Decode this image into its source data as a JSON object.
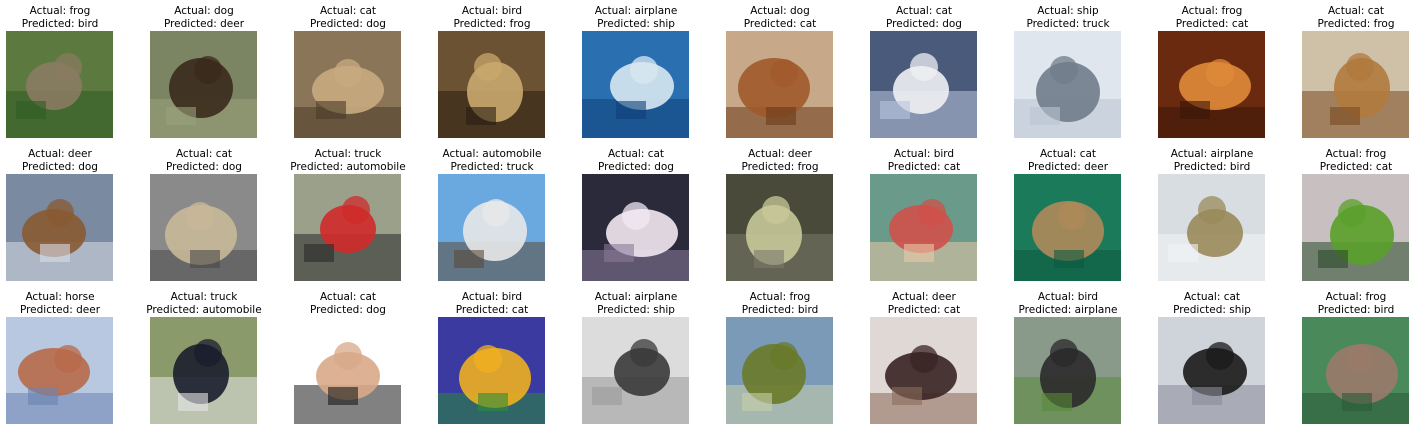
{
  "figure": {
    "description_rows": 3,
    "items": [
      {
        "actual": "Actual: frog",
        "predicted": "Predicted: bird",
        "icon": "frog-image",
        "bg": "#5c7a3f",
        "fg": "#8a7b62",
        "accent": "#2f5b24"
      },
      {
        "actual": "Actual: dog",
        "predicted": "Predicted: deer",
        "icon": "dog-image",
        "bg": "#7c8563",
        "fg": "#3a2a1c",
        "accent": "#9aa07c"
      },
      {
        "actual": "Actual: cat",
        "predicted": "Predicted: dog",
        "icon": "cat-image",
        "bg": "#8a7558",
        "fg": "#c8ab80",
        "accent": "#4a3a2a"
      },
      {
        "actual": "Actual: bird",
        "predicted": "Predicted: frog",
        "icon": "bird-image",
        "bg": "#6a5232",
        "fg": "#c9a86e",
        "accent": "#2a1e12"
      },
      {
        "actual": "Actual: airplane",
        "predicted": "Predicted: ship",
        "icon": "airplane-image",
        "bg": "#2a6fb0",
        "fg": "#d8e8f2",
        "accent": "#0f3f7a"
      },
      {
        "actual": "Actual: dog",
        "predicted": "Predicted: cat",
        "icon": "dog-image",
        "bg": "#c7a98a",
        "fg": "#a05a2a",
        "accent": "#6a3a1a"
      },
      {
        "actual": "Actual: cat",
        "predicted": "Predicted: dog",
        "icon": "cat-image",
        "bg": "#4a5a7a",
        "fg": "#f0f0f4",
        "accent": "#b8c4dc"
      },
      {
        "actual": "Actual: ship",
        "predicted": "Predicted: truck",
        "icon": "ship-image",
        "bg": "#dfe6ee",
        "fg": "#707c8a",
        "accent": "#b9c5d2"
      },
      {
        "actual": "Actual: frog",
        "predicted": "Predicted: cat",
        "icon": "frog-image",
        "bg": "#6a2a10",
        "fg": "#e08a3a",
        "accent": "#3a1508"
      },
      {
        "actual": "Actual: cat",
        "predicted": "Predicted: frog",
        "icon": "cat-image",
        "bg": "#cfc0a8",
        "fg": "#b07a3e",
        "accent": "#7a4a22"
      },
      {
        "actual": "Actual: deer",
        "predicted": "Predicted: dog",
        "icon": "deer-image",
        "bg": "#7a8aa0",
        "fg": "#8a5a32",
        "accent": "#d8dde6"
      },
      {
        "actual": "Actual: cat",
        "predicted": "Predicted: dog",
        "icon": "cat-image",
        "bg": "#8a8a8a",
        "fg": "#c8b898",
        "accent": "#4a4a4a"
      },
      {
        "actual": "Actual: truck",
        "predicted": "Predicted: automobile",
        "icon": "truck-image",
        "bg": "#9aa08a",
        "fg": "#d02a2a",
        "accent": "#2a2a2a"
      },
      {
        "actual": "Actual: automobile",
        "predicted": "Predicted: truck",
        "icon": "automobile-image",
        "bg": "#6aa8e0",
        "fg": "#e8e8e8",
        "accent": "#5a4a3a"
      },
      {
        "actual": "Actual: cat",
        "predicted": "Predicted: dog",
        "icon": "cat-image",
        "bg": "#2a2a3a",
        "fg": "#f2e8f2",
        "accent": "#8a7a9a"
      },
      {
        "actual": "Actual: deer",
        "predicted": "Predicted: frog",
        "icon": "deer-image",
        "bg": "#4a4a3a",
        "fg": "#c8c89a",
        "accent": "#7a7a6a"
      },
      {
        "actual": "Actual: bird",
        "predicted": "Predicted: cat",
        "icon": "bird-image",
        "bg": "#6a9a8a",
        "fg": "#d0504a",
        "accent": "#e8c8a8"
      },
      {
        "actual": "Actual: cat",
        "predicted": "Predicted: deer",
        "icon": "cat-image",
        "bg": "#1a7a5a",
        "fg": "#b08a5a",
        "accent": "#0e5a40"
      },
      {
        "actual": "Actual: airplane",
        "predicted": "Predicted: bird",
        "icon": "airplane-image",
        "bg": "#d8dde2",
        "fg": "#9a8a5a",
        "accent": "#f2f4f6"
      },
      {
        "actual": "Actual: frog",
        "predicted": "Predicted: cat",
        "icon": "frog-image",
        "bg": "#c8c0c0",
        "fg": "#5aa02a",
        "accent": "#2a4a2a"
      },
      {
        "actual": "Actual: horse",
        "predicted": "Predicted: deer",
        "icon": "horse-image",
        "bg": "#b8c8e0",
        "fg": "#b86a4a",
        "accent": "#6a84b0"
      },
      {
        "actual": "Actual: truck",
        "predicted": "Predicted: automobile",
        "icon": "truck-image",
        "bg": "#8a9a6a",
        "fg": "#1a1e2e",
        "accent": "#e6e6e6"
      },
      {
        "actual": "Actual: cat",
        "predicted": "Predicted: dog",
        "icon": "cat-image",
        "bg": "#ffffff",
        "fg": "#d8a888",
        "accent": "#1a1a1a"
      },
      {
        "actual": "Actual: bird",
        "predicted": "Predicted: cat",
        "icon": "bird-image",
        "bg": "#3a3aa0",
        "fg": "#f0b020",
        "accent": "#2a8a3a"
      },
      {
        "actual": "Actual: airplane",
        "predicted": "Predicted: ship",
        "icon": "airplane-image",
        "bg": "#dcdcdc",
        "fg": "#3a3a3a",
        "accent": "#9a9a9a"
      },
      {
        "actual": "Actual: frog",
        "predicted": "Predicted: bird",
        "icon": "frog-image",
        "bg": "#7a9ab8",
        "fg": "#6a7a2a",
        "accent": "#c8d0a8"
      },
      {
        "actual": "Actual: deer",
        "predicted": "Predicted: cat",
        "icon": "deer-image",
        "bg": "#e0d8d4",
        "fg": "#3a2424",
        "accent": "#8a6a5a"
      },
      {
        "actual": "Actual: bird",
        "predicted": "Predicted: airplane",
        "icon": "bird-image",
        "bg": "#8a9a8a",
        "fg": "#2a2a2a",
        "accent": "#5a8a3a"
      },
      {
        "actual": "Actual: cat",
        "predicted": "Predicted: ship",
        "icon": "cat-image",
        "bg": "#cfd4da",
        "fg": "#1a1a1a",
        "accent": "#8a8a9a"
      },
      {
        "actual": "Actual: frog",
        "predicted": "Predicted: bird",
        "icon": "frog-image",
        "bg": "#4a8a5a",
        "fg": "#9a7a6a",
        "accent": "#2a5a3a"
      }
    ]
  }
}
